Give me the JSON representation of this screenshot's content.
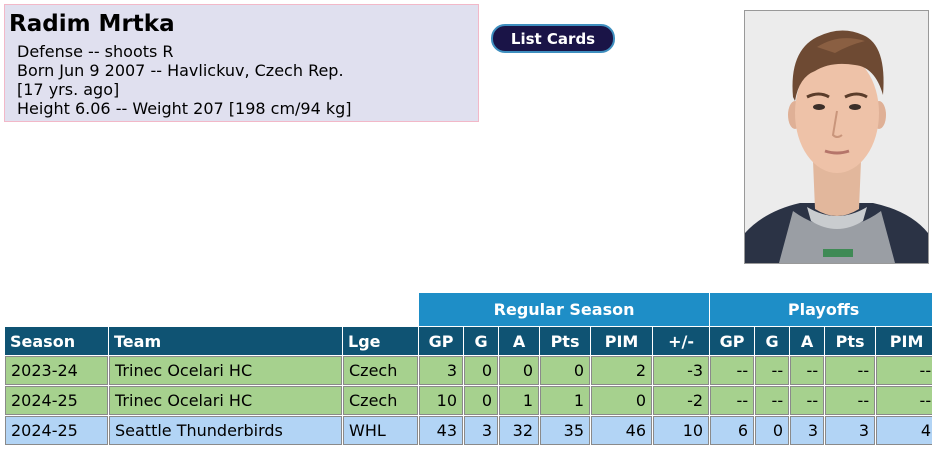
{
  "player": {
    "name": "Radim Mrtka",
    "info_lines": [
      "Defense -- shoots R",
      "Born Jun 9 2007 -- Havlickuv, Czech Rep.",
      "[17 yrs. ago]",
      "Height 6.06 -- Weight 207 [198 cm/94 kg]"
    ]
  },
  "buttons": {
    "list_cards": "List Cards"
  },
  "photo": {
    "subject": "player-headshot"
  },
  "stats": {
    "group_headers": {
      "regular": "Regular Season",
      "playoffs": "Playoffs"
    },
    "columns": [
      "Season",
      "Team",
      "Lge",
      "GP",
      "G",
      "A",
      "Pts",
      "PIM",
      "+/-",
      "GP",
      "G",
      "A",
      "Pts",
      "PIM"
    ],
    "rows": [
      {
        "season": "2023-24",
        "team": "Trinec Ocelari HC",
        "lge": "Czech",
        "reg": [
          "3",
          "0",
          "0",
          "0",
          "2",
          "-3"
        ],
        "po": [
          "--",
          "--",
          "--",
          "--",
          "--"
        ],
        "style": "green"
      },
      {
        "season": "2024-25",
        "team": "Trinec Ocelari HC",
        "lge": "Czech",
        "reg": [
          "10",
          "0",
          "1",
          "1",
          "0",
          "-2"
        ],
        "po": [
          "--",
          "--",
          "--",
          "--",
          "--"
        ],
        "style": "green"
      },
      {
        "season": "2024-25",
        "team": "Seattle Thunderbirds",
        "lge": "WHL",
        "reg": [
          "43",
          "3",
          "32",
          "35",
          "46",
          "10"
        ],
        "po": [
          "6",
          "0",
          "3",
          "3",
          "4"
        ],
        "style": "blue"
      }
    ]
  },
  "colors": {
    "player_box_bg": "#e0e0ef",
    "group_header_bg": "#1e8ec7",
    "column_header_bg": "#0f5373",
    "row_green": "#a6d18e",
    "row_blue": "#b2d4f5",
    "button_bg": "#1a1447"
  }
}
